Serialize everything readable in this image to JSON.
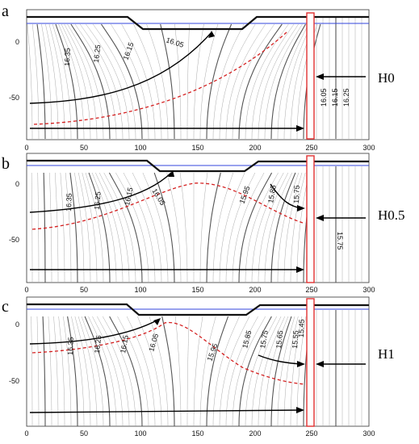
{
  "figure": {
    "panels": [
      {
        "letter": "a",
        "scenario": "H0",
        "x_ticks": [
          "0",
          "50",
          "100",
          "150",
          "200",
          "250",
          "300"
        ],
        "y_ticks": [
          "0",
          "-50"
        ],
        "contour_labels": [
          "16.35",
          "16.25",
          "16.15",
          "16.05",
          "16.05",
          "16.15",
          "16.25"
        ]
      },
      {
        "letter": "b",
        "scenario": "H0.5",
        "x_ticks": [
          "0",
          "50",
          "100",
          "150",
          "200",
          "250",
          "300"
        ],
        "y_ticks": [
          "0",
          "-50"
        ],
        "contour_labels": [
          "16.35",
          "16.25",
          "16.15",
          "16.05",
          "15.95",
          "15.85",
          "15.75",
          "15.75"
        ]
      },
      {
        "letter": "c",
        "scenario": "H1",
        "x_ticks": [
          "0",
          "50",
          "100",
          "150",
          "200",
          "250",
          "300"
        ],
        "y_ticks": [
          "0",
          "-50"
        ],
        "contour_labels": [
          "16.35",
          "16.25",
          "16.15",
          "16.05",
          "15.95",
          "15.85",
          "15.75",
          "15.65",
          "15.55",
          "15.45"
        ]
      }
    ],
    "colors": {
      "water_table": "#3344dd",
      "dividing_streamline": "#d42020",
      "wall": "#e03030",
      "contour_major": "#555555",
      "contour_minor": "#aaaaaa",
      "flow_arrow": "#000000"
    }
  }
}
